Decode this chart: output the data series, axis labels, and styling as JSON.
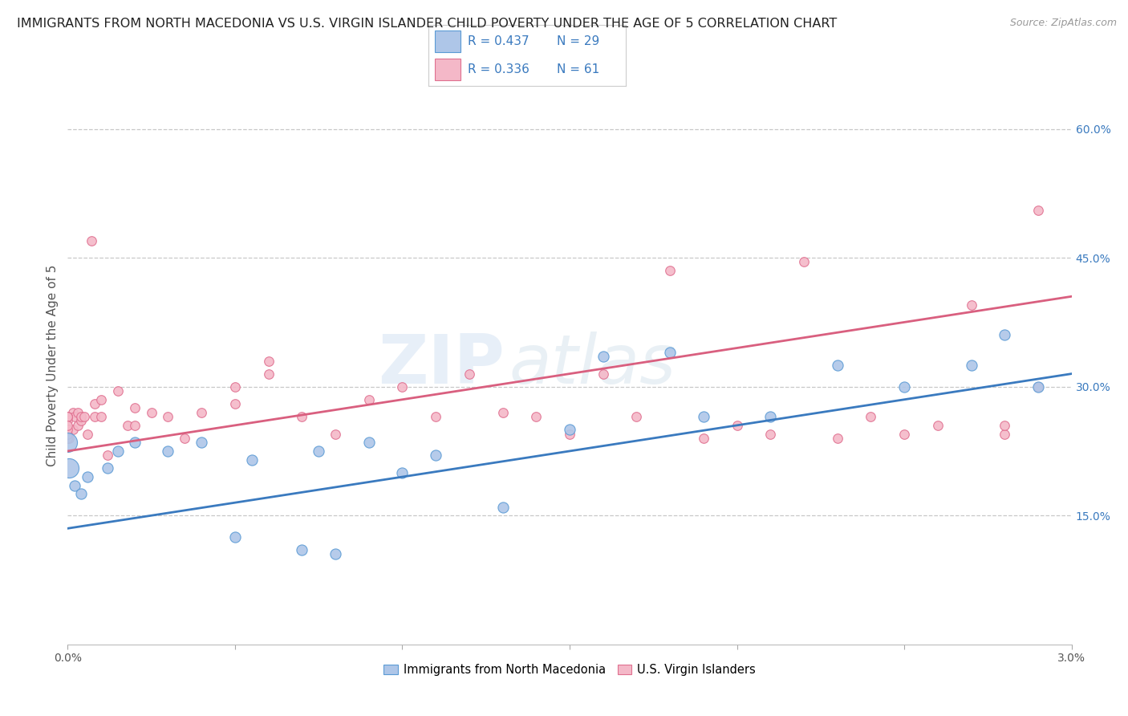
{
  "title": "IMMIGRANTS FROM NORTH MACEDONIA VS U.S. VIRGIN ISLANDER CHILD POVERTY UNDER THE AGE OF 5 CORRELATION CHART",
  "source": "Source: ZipAtlas.com",
  "ylabel": "Child Poverty Under the Age of 5",
  "xlim": [
    0.0,
    0.03
  ],
  "ylim": [
    0.0,
    0.65
  ],
  "ytick_positions": [
    0.15,
    0.3,
    0.45,
    0.6
  ],
  "ytick_labels": [
    "15.0%",
    "30.0%",
    "45.0%",
    "60.0%"
  ],
  "watermark": "ZIPAtlas",
  "blue_color": "#aec6e8",
  "blue_edge_color": "#5b9bd5",
  "pink_color": "#f4b8c8",
  "pink_edge_color": "#e07090",
  "blue_line_color": "#3a7abf",
  "pink_line_color": "#d95f7f",
  "blue_scatter_x": [
    5e-05,
    0.0002,
    0.0004,
    0.0006,
    0.0012,
    0.0015,
    0.002,
    0.003,
    0.004,
    0.005,
    0.0055,
    0.007,
    0.0075,
    0.008,
    0.009,
    0.01,
    0.011,
    0.013,
    0.015,
    0.016,
    0.018,
    0.019,
    0.021,
    0.023,
    0.025,
    0.027,
    0.028,
    0.029,
    0.0
  ],
  "blue_scatter_y": [
    0.205,
    0.185,
    0.175,
    0.195,
    0.205,
    0.225,
    0.235,
    0.225,
    0.235,
    0.125,
    0.215,
    0.11,
    0.225,
    0.105,
    0.235,
    0.2,
    0.22,
    0.16,
    0.25,
    0.335,
    0.34,
    0.265,
    0.265,
    0.325,
    0.3,
    0.325,
    0.36,
    0.3,
    0.235
  ],
  "blue_scatter_big": [
    0,
    28
  ],
  "blue_scatter_big_size": 300,
  "blue_scatter_size": 90,
  "pink_scatter_x": [
    5e-05,
    0.00015,
    0.00015,
    0.0002,
    0.0003,
    0.0003,
    0.0004,
    0.0004,
    0.0005,
    0.0006,
    0.0007,
    0.0008,
    0.0008,
    0.001,
    0.001,
    0.0012,
    0.0015,
    0.0018,
    0.002,
    0.002,
    0.0025,
    0.003,
    0.0035,
    0.004,
    0.005,
    0.005,
    0.006,
    0.006,
    0.007,
    0.008,
    0.009,
    0.01,
    0.011,
    0.012,
    0.013,
    0.014,
    0.015,
    0.016,
    0.017,
    0.018,
    0.019,
    0.02,
    0.021,
    0.022,
    0.023,
    0.024,
    0.025,
    0.026,
    0.027,
    0.028,
    0.028,
    0.029,
    0.029,
    0.0,
    0.0,
    0.0,
    0.0,
    0.0,
    0.0,
    0.0,
    0.0
  ],
  "pink_scatter_y": [
    0.24,
    0.25,
    0.27,
    0.265,
    0.255,
    0.27,
    0.26,
    0.265,
    0.265,
    0.245,
    0.47,
    0.28,
    0.265,
    0.285,
    0.265,
    0.22,
    0.295,
    0.255,
    0.275,
    0.255,
    0.27,
    0.265,
    0.24,
    0.27,
    0.28,
    0.3,
    0.315,
    0.33,
    0.265,
    0.245,
    0.285,
    0.3,
    0.265,
    0.315,
    0.27,
    0.265,
    0.245,
    0.315,
    0.265,
    0.435,
    0.24,
    0.255,
    0.245,
    0.445,
    0.24,
    0.265,
    0.245,
    0.255,
    0.395,
    0.245,
    0.255,
    0.3,
    0.505,
    0.24,
    0.245,
    0.265,
    0.26,
    0.25,
    0.265,
    0.265,
    0.255
  ],
  "pink_scatter_size": 70,
  "blue_trend_y0": 0.135,
  "blue_trend_y1": 0.315,
  "pink_trend_y0": 0.225,
  "pink_trend_y1": 0.405,
  "grid_color": "#c8c8c8",
  "grid_linestyle": "--",
  "background_color": "#ffffff",
  "title_fontsize": 11.5,
  "source_fontsize": 9,
  "axis_label_fontsize": 11,
  "tick_fontsize": 10,
  "legend_label_blue": "Immigrants from North Macedonia",
  "legend_label_pink": "U.S. Virgin Islanders",
  "legend_r_blue": "R = 0.437",
  "legend_n_blue": "N = 29",
  "legend_r_pink": "R = 0.336",
  "legend_n_pink": "N = 61"
}
